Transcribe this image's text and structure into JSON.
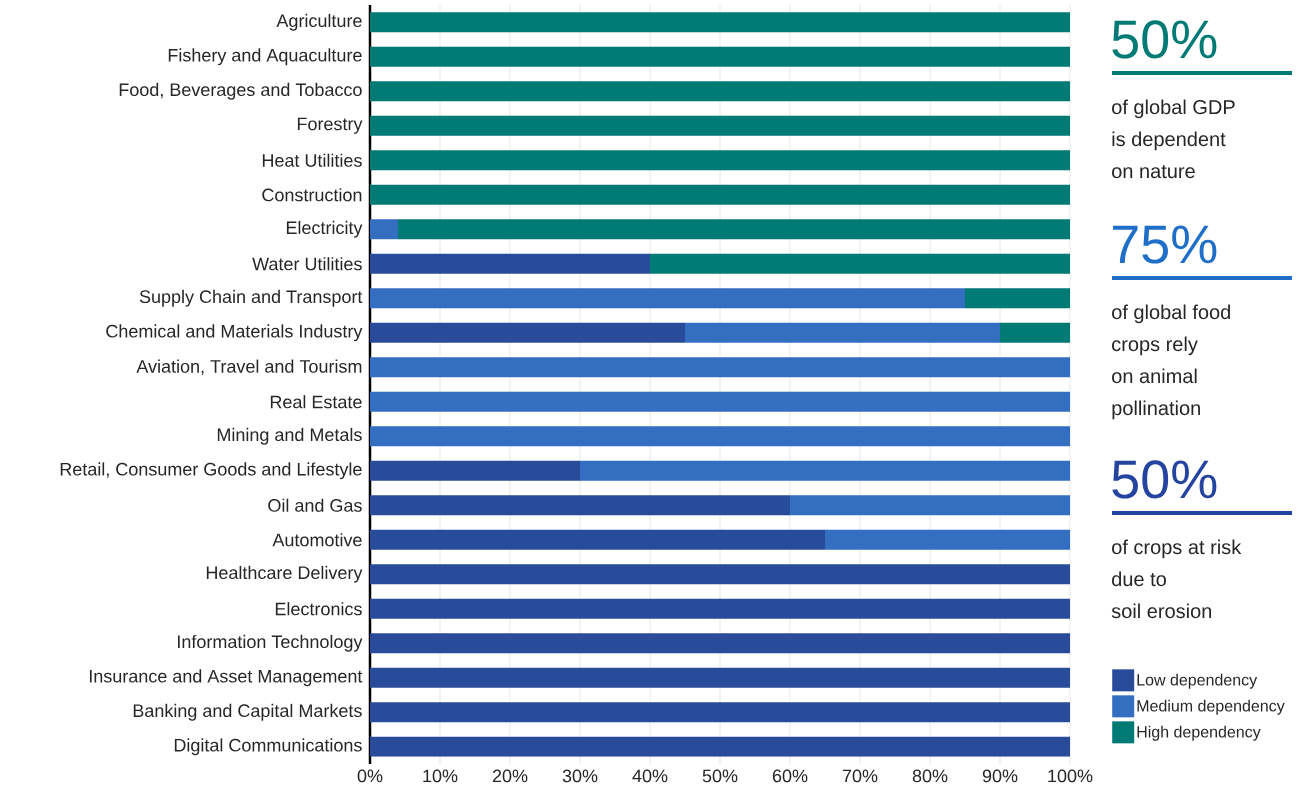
{
  "chart_data": {
    "type": "bar",
    "orientation": "horizontal",
    "stacked": true,
    "categories": [
      "Agriculture",
      "Fishery and Aquaculture",
      "Food, Beverages and Tobacco",
      "Forestry",
      "Heat Utilities",
      "Construction",
      "Electricity",
      "Water Utilities",
      "Supply Chain and Transport",
      "Chemical and Materials Industry",
      "Aviation, Travel and Tourism",
      "Real Estate",
      "Mining and Metals",
      "Retail, Consumer Goods and Lifestyle",
      "Oil and Gas",
      "Automotive",
      "Healthcare Delivery",
      "Electronics",
      "Information Technology",
      "Insurance and Asset Management",
      "Banking and Capital Markets",
      "Digital Communications"
    ],
    "series": [
      {
        "name": "Low dependency",
        "color": "#284b9a",
        "values": [
          0,
          0,
          0,
          0,
          0,
          0,
          0,
          40,
          0,
          45,
          0,
          0,
          0,
          30,
          60,
          65,
          100,
          100,
          100,
          100,
          100,
          100
        ]
      },
      {
        "name": "Medium dependency",
        "color": "#336ec0",
        "values": [
          0,
          0,
          0,
          0,
          0,
          0,
          4,
          0,
          85,
          45,
          100,
          100,
          100,
          70,
          40,
          35,
          0,
          0,
          0,
          0,
          0,
          0
        ]
      },
      {
        "name": "High dependency",
        "color": "#007a75",
        "values": [
          100,
          100,
          100,
          100,
          100,
          100,
          96,
          60,
          15,
          10,
          0,
          0,
          0,
          0,
          0,
          0,
          0,
          0,
          0,
          0,
          0,
          0
        ]
      }
    ],
    "xlim": [
      0,
      100
    ],
    "xticks": [
      {
        "value": 0,
        "label": "0%"
      },
      {
        "value": 10,
        "label": "10%"
      },
      {
        "value": 20,
        "label": "20%"
      },
      {
        "value": 30,
        "label": "30%"
      },
      {
        "value": 40,
        "label": "40%"
      },
      {
        "value": 50,
        "label": "50%"
      },
      {
        "value": 60,
        "label": "60%"
      },
      {
        "value": 70,
        "label": "70%"
      },
      {
        "value": 80,
        "label": "80%"
      },
      {
        "value": 90,
        "label": "90%"
      },
      {
        "value": 100,
        "label": "100%"
      }
    ],
    "grid": "x",
    "legend": "bottom right",
    "annotations": [
      "50%",
      "of global GDP",
      "is dependent",
      "on nature",
      "75%",
      "of global food",
      "crops rely",
      "on animal",
      "pollination",
      "50%",
      "of crops at risk",
      "due to",
      "soil erosion"
    ]
  }
}
